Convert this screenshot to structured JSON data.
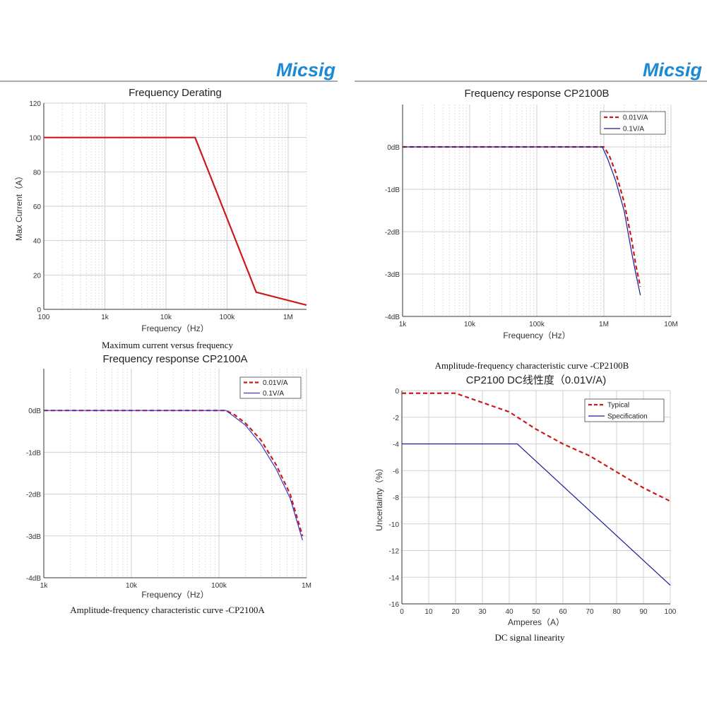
{
  "header": {
    "brand_left": "Micsig",
    "brand_right": "Micsig",
    "brand_color": "#1a8ad4"
  },
  "charts": [
    {
      "caption": "Maximum current versus frequency"
    },
    {
      "caption": "Amplitude-frequency characteristic curve -CP2100B"
    },
    {
      "caption": "Amplitude-frequency characteristic curve -CP2100A"
    },
    {
      "caption": "DC signal linearity"
    }
  ],
  "chart_data": [
    {
      "type": "line",
      "title": "Frequency Derating",
      "xlabel": "Frequency（Hz）",
      "ylabel": "Max Current（A）",
      "x_scale": "log",
      "xlim": [
        100,
        2000000
      ],
      "ylim": [
        0,
        120
      ],
      "xticks": [
        100,
        1000,
        10000,
        100000,
        1000000
      ],
      "xtick_labels": [
        "100",
        "1k",
        "10k",
        "100k",
        "1M"
      ],
      "yticks": [
        0,
        20,
        40,
        60,
        80,
        100,
        120
      ],
      "ytick_labels": [
        "0",
        "20",
        "40",
        "60",
        "80",
        "100",
        "120"
      ],
      "grid": true,
      "series": [
        {
          "color": "#cc1a1a",
          "style": "solid",
          "points": [
            [
              100,
              100
            ],
            [
              30000,
              100
            ],
            [
              300000,
              10
            ],
            [
              2000000,
              2.5
            ]
          ]
        }
      ]
    },
    {
      "type": "line",
      "title": "Frequency response CP2100B",
      "xlabel": "Frequency（Hz）",
      "ylabel": "",
      "x_scale": "log",
      "xlim": [
        1000,
        10000000
      ],
      "ylim": [
        -4,
        1
      ],
      "xticks": [
        1000,
        10000,
        100000,
        1000000,
        10000000
      ],
      "xtick_labels": [
        "1k",
        "10k",
        "100k",
        "1M",
        "10M"
      ],
      "yticks": [
        0,
        -1,
        -2,
        -3,
        -4
      ],
      "ytick_labels": [
        "0dB",
        "-1dB",
        "-2dB",
        "-3dB",
        "-4dB"
      ],
      "grid": true,
      "legend_position": "top-right",
      "series": [
        {
          "name": "0.01V/A",
          "color": "#cc1a1a",
          "style": "dashed",
          "points": [
            [
              1000,
              0
            ],
            [
              1000000,
              0
            ],
            [
              1200000,
              -0.2
            ],
            [
              1500000,
              -0.6
            ],
            [
              2000000,
              -1.3
            ],
            [
              2600000,
              -2.2
            ],
            [
              3000000,
              -2.8
            ],
            [
              3500000,
              -3.3
            ]
          ]
        },
        {
          "name": "0.1V/A",
          "color": "#1a1a99",
          "style": "solid",
          "points": [
            [
              1000,
              0
            ],
            [
              950000,
              0
            ],
            [
              1150000,
              -0.3
            ],
            [
              1500000,
              -0.8
            ],
            [
              2000000,
              -1.5
            ],
            [
              2600000,
              -2.5
            ],
            [
              3000000,
              -3.0
            ],
            [
              3500000,
              -3.5
            ]
          ]
        }
      ]
    },
    {
      "type": "line",
      "title": "Frequency response CP2100A",
      "xlabel": "Frequency（Hz）",
      "ylabel": "",
      "x_scale": "log",
      "xlim": [
        1000,
        1000000
      ],
      "ylim": [
        -4,
        1
      ],
      "xticks": [
        1000,
        10000,
        100000,
        1000000
      ],
      "xtick_labels": [
        "1k",
        "10k",
        "100k",
        "1M"
      ],
      "yticks": [
        0,
        -1,
        -2,
        -3,
        -4
      ],
      "ytick_labels": [
        "0dB",
        "-1dB",
        "-2dB",
        "-3dB",
        "-4dB"
      ],
      "grid": true,
      "legend_position": "top-right",
      "series": [
        {
          "name": "0.01V/A",
          "color": "#cc1a1a",
          "style": "dashed",
          "points": [
            [
              1000,
              0
            ],
            [
              120000,
              0
            ],
            [
              150000,
              -0.1
            ],
            [
              200000,
              -0.3
            ],
            [
              300000,
              -0.7
            ],
            [
              450000,
              -1.3
            ],
            [
              650000,
              -2.0
            ],
            [
              900000,
              -3.0
            ]
          ]
        },
        {
          "name": "0.1V/A",
          "color": "#3a3acc",
          "style": "solid",
          "points": [
            [
              1000,
              0
            ],
            [
              120000,
              0
            ],
            [
              150000,
              -0.15
            ],
            [
              200000,
              -0.35
            ],
            [
              300000,
              -0.8
            ],
            [
              450000,
              -1.4
            ],
            [
              650000,
              -2.1
            ],
            [
              900000,
              -3.1
            ]
          ]
        }
      ]
    },
    {
      "type": "line",
      "title": "CP2100  DC线性度（0.01V/A)",
      "xlabel": "Amperes（A）",
      "ylabel": "Uncertainty（%）",
      "x_scale": "linear",
      "xlim": [
        0,
        100
      ],
      "ylim": [
        -16,
        0
      ],
      "xticks": [
        0,
        10,
        20,
        30,
        40,
        50,
        60,
        70,
        80,
        90,
        100
      ],
      "xtick_labels": [
        "0",
        "10",
        "20",
        "30",
        "40",
        "50",
        "60",
        "70",
        "80",
        "90",
        "100"
      ],
      "yticks": [
        0,
        -2,
        -4,
        -6,
        -8,
        -10,
        -12,
        -14,
        -16
      ],
      "ytick_labels": [
        "0",
        "-2",
        "-4",
        "-6",
        "-8",
        "-10",
        "-12",
        "-14",
        "-16"
      ],
      "grid": true,
      "legend_position": "top-right",
      "series": [
        {
          "name": "Typical",
          "color": "#cc1a1a",
          "style": "dashed",
          "points": [
            [
              0,
              -0.2
            ],
            [
              20,
              -0.2
            ],
            [
              30,
              -0.9
            ],
            [
              40,
              -1.6
            ],
            [
              50,
              -2.9
            ],
            [
              60,
              -4.0
            ],
            [
              70,
              -4.9
            ],
            [
              80,
              -6.1
            ],
            [
              90,
              -7.3
            ],
            [
              100,
              -8.3
            ]
          ]
        },
        {
          "name": "Specification",
          "color": "#1a1a99",
          "style": "solid",
          "points": [
            [
              0,
              -4
            ],
            [
              43,
              -4
            ],
            [
              100,
              -14.6
            ]
          ]
        }
      ]
    }
  ]
}
